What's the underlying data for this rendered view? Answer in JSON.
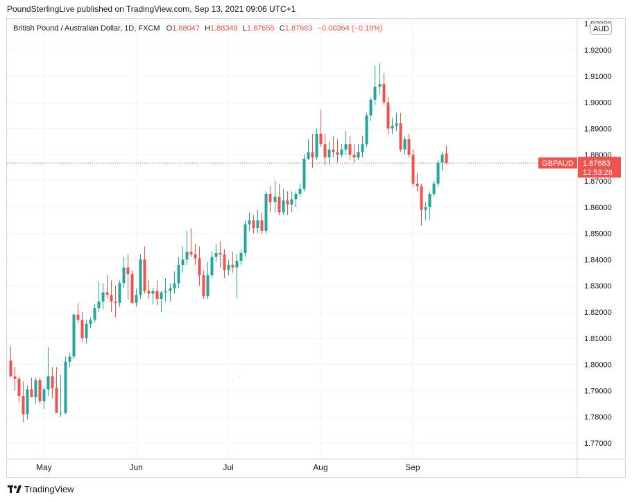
{
  "header": {
    "publisher_line": "PoundSterlingLive published on TradingView.com, Sep 13, 2021 09:06 UTC+1"
  },
  "legend": {
    "symbol": "British Pound / Australian Dollar, 1D, FXCM",
    "o_label": "O",
    "o_value": "1.88047",
    "h_label": "H",
    "h_value": "1.88349",
    "l_label": "L",
    "l_value": "1.87655",
    "c_label": "C",
    "c_value": "1.87683",
    "change": "−0.00364 (−0.19%)"
  },
  "currency_button": "AUD",
  "footer": {
    "brand": "TradingView"
  },
  "price_tag": {
    "symbol": "GBPAUD",
    "price": "1.87683",
    "countdown": "12:53:26"
  },
  "colors": {
    "up": "#26a69a",
    "down": "#ef5350",
    "grid": "#f0f3fa",
    "axis_text": "#131722",
    "last_price_line": "#ef5350"
  },
  "chart_data": {
    "type": "candlestick",
    "symbol": "GBPAUD",
    "timeframe": "1D",
    "ylim": [
      1.765,
      1.933
    ],
    "y_ticks": [
      "1.77000",
      "1.78000",
      "1.79000",
      "1.80000",
      "1.81000",
      "1.82000",
      "1.83000",
      "1.84000",
      "1.85000",
      "1.86000",
      "1.87000",
      "1.88000",
      "1.89000",
      "1.90000",
      "1.91000",
      "1.92000",
      "1.93000"
    ],
    "x_ticks": [
      {
        "label": "May",
        "index": 8
      },
      {
        "label": "Jun",
        "index": 30
      },
      {
        "label": "Jul",
        "index": 52
      },
      {
        "label": "Aug",
        "index": 74
      },
      {
        "label": "Sep",
        "index": 96
      }
    ],
    "last_price": 1.87683,
    "candles": [
      [
        1.8015,
        1.807,
        1.795,
        1.7955
      ],
      [
        1.7955,
        1.799,
        1.79,
        1.7945
      ],
      [
        1.7945,
        1.7955,
        1.7855,
        1.788
      ],
      [
        1.788,
        1.7935,
        1.778,
        1.781
      ],
      [
        1.781,
        1.792,
        1.779,
        1.7905
      ],
      [
        1.7905,
        1.795,
        1.789,
        1.7875
      ],
      [
        1.7875,
        1.795,
        1.785,
        1.794
      ],
      [
        1.794,
        1.795,
        1.785,
        1.786
      ],
      [
        1.786,
        1.7915,
        1.783,
        1.7905
      ],
      [
        1.7905,
        1.8065,
        1.788,
        1.7955
      ],
      [
        1.7955,
        1.799,
        1.787,
        1.791
      ],
      [
        1.791,
        1.799,
        1.782,
        1.7815
      ],
      [
        1.7815,
        1.796,
        1.78,
        1.7815
      ],
      [
        1.7815,
        1.803,
        1.781,
        1.801
      ],
      [
        1.801,
        1.8045,
        1.799,
        1.803
      ],
      [
        1.803,
        1.8195,
        1.802,
        1.819
      ],
      [
        1.819,
        1.8235,
        1.816,
        1.817
      ],
      [
        1.817,
        1.82,
        1.8085,
        1.81
      ],
      [
        1.81,
        1.817,
        1.808,
        1.8155
      ],
      [
        1.8155,
        1.818,
        1.814,
        1.817
      ],
      [
        1.817,
        1.823,
        1.816,
        1.8215
      ],
      [
        1.8215,
        1.8315,
        1.82,
        1.824
      ],
      [
        1.824,
        1.831,
        1.821,
        1.8275
      ],
      [
        1.8275,
        1.834,
        1.825,
        1.8265
      ],
      [
        1.8265,
        1.832,
        1.82,
        1.824
      ],
      [
        1.824,
        1.83,
        1.818,
        1.8235
      ],
      [
        1.8235,
        1.832,
        1.822,
        1.831
      ],
      [
        1.831,
        1.841,
        1.829,
        1.837
      ],
      [
        1.837,
        1.842,
        1.825,
        1.8345
      ],
      [
        1.8345,
        1.836,
        1.823,
        1.8235
      ],
      [
        1.8235,
        1.829,
        1.822,
        1.8265
      ],
      [
        1.8265,
        1.842,
        1.825,
        1.84
      ],
      [
        1.84,
        1.845,
        1.827,
        1.828
      ],
      [
        1.828,
        1.832,
        1.825,
        1.827
      ],
      [
        1.827,
        1.829,
        1.823,
        1.828
      ],
      [
        1.828,
        1.832,
        1.8225,
        1.825
      ],
      [
        1.825,
        1.828,
        1.82,
        1.8275
      ],
      [
        1.8275,
        1.833,
        1.824,
        1.828
      ],
      [
        1.828,
        1.831,
        1.824,
        1.829
      ],
      [
        1.829,
        1.8355,
        1.827,
        1.831
      ],
      [
        1.831,
        1.841,
        1.829,
        1.838
      ],
      [
        1.838,
        1.845,
        1.835,
        1.84
      ],
      [
        1.84,
        1.851,
        1.838,
        1.843
      ],
      [
        1.843,
        1.852,
        1.841,
        1.842
      ],
      [
        1.842,
        1.846,
        1.838,
        1.8405
      ],
      [
        1.8405,
        1.845,
        1.83,
        1.834
      ],
      [
        1.834,
        1.836,
        1.825,
        1.826
      ],
      [
        1.826,
        1.839,
        1.825,
        1.834
      ],
      [
        1.834,
        1.843,
        1.833,
        1.841
      ],
      [
        1.841,
        1.846,
        1.839,
        1.8425
      ],
      [
        1.8425,
        1.847,
        1.837,
        1.842
      ],
      [
        1.842,
        1.844,
        1.833,
        1.836
      ],
      [
        1.836,
        1.84,
        1.834,
        1.838
      ],
      [
        1.838,
        1.843,
        1.835,
        1.837
      ],
      [
        1.837,
        1.842,
        1.8255,
        1.8395
      ],
      [
        1.8395,
        1.844,
        1.838,
        1.8425
      ],
      [
        1.8425,
        1.855,
        1.841,
        1.8535
      ],
      [
        1.8535,
        1.858,
        1.851,
        1.855
      ],
      [
        1.855,
        1.857,
        1.85,
        1.852
      ],
      [
        1.852,
        1.859,
        1.85,
        1.855
      ],
      [
        1.855,
        1.858,
        1.85,
        1.851
      ],
      [
        1.851,
        1.866,
        1.85,
        1.865
      ],
      [
        1.865,
        1.868,
        1.858,
        1.862
      ],
      [
        1.862,
        1.87,
        1.858,
        1.864
      ],
      [
        1.864,
        1.869,
        1.857,
        1.858
      ],
      [
        1.858,
        1.867,
        1.857,
        1.8625
      ],
      [
        1.8625,
        1.866,
        1.857,
        1.861
      ],
      [
        1.861,
        1.866,
        1.858,
        1.863
      ],
      [
        1.863,
        1.866,
        1.86,
        1.865
      ],
      [
        1.865,
        1.869,
        1.864,
        1.867
      ],
      [
        1.867,
        1.88,
        1.866,
        1.8785
      ],
      [
        1.8785,
        1.886,
        1.878,
        1.881
      ],
      [
        1.881,
        1.888,
        1.875,
        1.879
      ],
      [
        1.879,
        1.89,
        1.878,
        1.888
      ],
      [
        1.888,
        1.897,
        1.883,
        1.884
      ],
      [
        1.884,
        1.888,
        1.876,
        1.879
      ],
      [
        1.879,
        1.885,
        1.876,
        1.882
      ],
      [
        1.882,
        1.887,
        1.879,
        1.881
      ],
      [
        1.881,
        1.886,
        1.877,
        1.88
      ],
      [
        1.88,
        1.884,
        1.879,
        1.882
      ],
      [
        1.882,
        1.889,
        1.88,
        1.884
      ],
      [
        1.884,
        1.887,
        1.878,
        1.88
      ],
      [
        1.88,
        1.884,
        1.877,
        1.879
      ],
      [
        1.879,
        1.884,
        1.878,
        1.881
      ],
      [
        1.881,
        1.887,
        1.879,
        1.884
      ],
      [
        1.884,
        1.896,
        1.883,
        1.895
      ],
      [
        1.895,
        1.902,
        1.893,
        1.901
      ],
      [
        1.901,
        1.914,
        1.899,
        1.906
      ],
      [
        1.906,
        1.915,
        1.903,
        1.907
      ],
      [
        1.907,
        1.911,
        1.899,
        1.9
      ],
      [
        1.9,
        1.902,
        1.888,
        1.89
      ],
      [
        1.89,
        1.894,
        1.888,
        1.891
      ],
      [
        1.891,
        1.896,
        1.889,
        1.892
      ],
      [
        1.892,
        1.896,
        1.881,
        1.882
      ],
      [
        1.882,
        1.887,
        1.88,
        1.886
      ],
      [
        1.886,
        1.888,
        1.879,
        1.88
      ],
      [
        1.88,
        1.882,
        1.868,
        1.869
      ],
      [
        1.869,
        1.873,
        1.866,
        1.868
      ],
      [
        1.868,
        1.869,
        1.853,
        1.859
      ],
      [
        1.859,
        1.862,
        1.855,
        1.86
      ],
      [
        1.86,
        1.866,
        1.855,
        1.865
      ],
      [
        1.865,
        1.87,
        1.864,
        1.869
      ],
      [
        1.869,
        1.878,
        1.868,
        1.877
      ],
      [
        1.877,
        1.881,
        1.874,
        1.88
      ],
      [
        1.8805,
        1.8835,
        1.8765,
        1.87683
      ]
    ]
  }
}
